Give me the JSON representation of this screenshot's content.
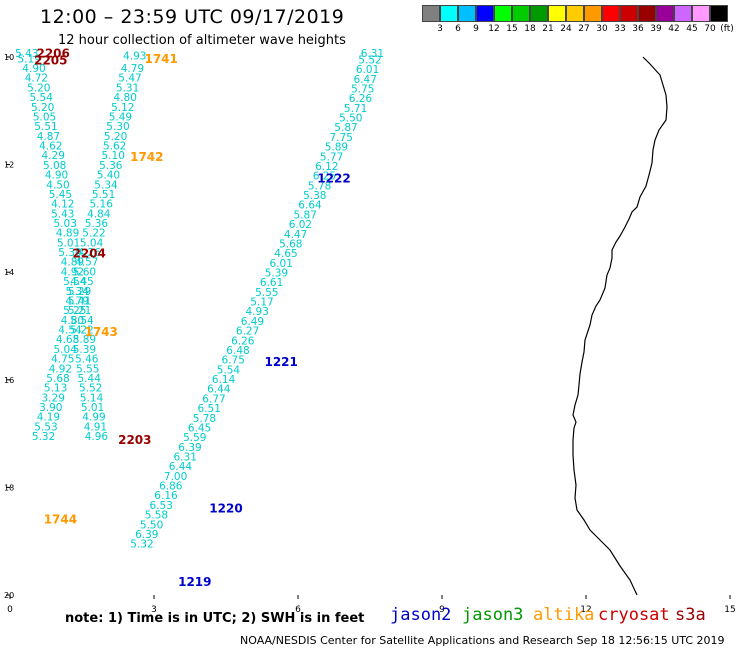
{
  "title": "12:00 – 23:59 UTC 09/17/2019",
  "subtitle": "12 hour collection of altimeter wave heights",
  "scale": {
    "unit": "(ft)",
    "values": [
      "3",
      "6",
      "9",
      "12",
      "15",
      "18",
      "21",
      "24",
      "27",
      "30",
      "33",
      "36",
      "39",
      "42",
      "45",
      "70"
    ],
    "colors": [
      "#808080",
      "#00ffff",
      "#00bfff",
      "#0000ff",
      "#00ff00",
      "#00cc00",
      "#009900",
      "#ffff00",
      "#ffcc00",
      "#ff9900",
      "#ff0000",
      "#cc0000",
      "#990000",
      "#990099",
      "#cc66ff",
      "#ff99ff",
      "#000000"
    ]
  },
  "axes": {
    "x_ticks": [
      "0",
      "3",
      "6",
      "9",
      "12",
      "15"
    ],
    "y_ticks": [
      "10",
      "12",
      "14",
      "16",
      "18",
      "20"
    ],
    "x_range": [
      0,
      15
    ],
    "y_range": [
      10,
      20
    ]
  },
  "colors": {
    "wave": "#00cccc",
    "jason2": "#0000cc",
    "jason3": "#009900",
    "altika": "#ff9900",
    "cryosat": "#cc0000",
    "s3a": "#990000",
    "coast": "#000000"
  },
  "tracks": [
    {
      "time": "1741",
      "sat": "altika",
      "x": 3.15,
      "y": 10.11
    },
    {
      "time": "1742",
      "sat": "altika",
      "x": 2.85,
      "y": 11.93
    },
    {
      "time": "1743",
      "sat": "altika",
      "x": 1.9,
      "y": 15.19
    },
    {
      "time": "1744",
      "sat": "altika",
      "x": 1.05,
      "y": 18.67
    },
    {
      "time": "2206",
      "sat": "s3a",
      "x": 0.9,
      "y": 10.01
    },
    {
      "time": "2205",
      "sat": "s3a",
      "x": 0.85,
      "y": 10.14
    },
    {
      "time": "2204",
      "sat": "s3a",
      "x": 1.65,
      "y": 13.73
    },
    {
      "time": "2203",
      "sat": "s3a",
      "x": 2.6,
      "y": 17.19
    },
    {
      "time": "1222",
      "sat": "jason2",
      "x": 6.75,
      "y": 12.33
    },
    {
      "time": "1221",
      "sat": "jason2",
      "x": 5.65,
      "y": 15.74
    },
    {
      "time": "1220",
      "sat": "jason2",
      "x": 4.5,
      "y": 18.47
    },
    {
      "time": "1219",
      "sat": "jason2",
      "x": 3.85,
      "y": 19.83
    }
  ],
  "points": [
    {
      "v": "5.43",
      "x": 0.35,
      "y": 10.0
    },
    {
      "v": "5.19",
      "x": 0.4,
      "y": 10.1
    },
    {
      "v": "4.90",
      "x": 0.5,
      "y": 10.28
    },
    {
      "v": "4.72",
      "x": 0.55,
      "y": 10.46
    },
    {
      "v": "5.20",
      "x": 0.6,
      "y": 10.64
    },
    {
      "v": "5.54",
      "x": 0.65,
      "y": 10.82
    },
    {
      "v": "5.20",
      "x": 0.68,
      "y": 11.0
    },
    {
      "v": "5.05",
      "x": 0.72,
      "y": 11.18
    },
    {
      "v": "5.51",
      "x": 0.75,
      "y": 11.36
    },
    {
      "v": "4.87",
      "x": 0.8,
      "y": 11.54
    },
    {
      "v": "4.62",
      "x": 0.85,
      "y": 11.72
    },
    {
      "v": "4.29",
      "x": 0.9,
      "y": 11.9
    },
    {
      "v": "5.08",
      "x": 0.93,
      "y": 12.08
    },
    {
      "v": "4.90",
      "x": 0.97,
      "y": 12.26
    },
    {
      "v": "4.50",
      "x": 1.0,
      "y": 12.44
    },
    {
      "v": "5.45",
      "x": 1.05,
      "y": 12.62
    },
    {
      "v": "4.12",
      "x": 1.1,
      "y": 12.8
    },
    {
      "v": "5.43",
      "x": 1.1,
      "y": 12.98
    },
    {
      "v": "5.03",
      "x": 1.15,
      "y": 13.16
    },
    {
      "v": "4.89",
      "x": 1.2,
      "y": 13.34
    },
    {
      "v": "5.01",
      "x": 1.22,
      "y": 13.52
    },
    {
      "v": "5.30",
      "x": 1.25,
      "y": 13.7
    },
    {
      "v": "4.89",
      "x": 1.3,
      "y": 13.88
    },
    {
      "v": "4.92",
      "x": 1.3,
      "y": 14.06
    },
    {
      "v": "5.54",
      "x": 1.35,
      "y": 14.24
    },
    {
      "v": "5.34",
      "x": 1.4,
      "y": 14.42
    },
    {
      "v": "5.41",
      "x": 1.45,
      "y": 14.6
    },
    {
      "v": "5.21",
      "x": 1.45,
      "y": 14.78
    },
    {
      "v": "5.54",
      "x": 1.5,
      "y": 14.96
    },
    {
      "v": "5.22",
      "x": 1.5,
      "y": 15.14
    },
    {
      "v": "5.89",
      "x": 1.55,
      "y": 15.32
    },
    {
      "v": "5.39",
      "x": 1.55,
      "y": 15.5
    },
    {
      "v": "5.46",
      "x": 1.6,
      "y": 15.68
    },
    {
      "v": "5.55",
      "x": 1.62,
      "y": 15.86
    },
    {
      "v": "5.44",
      "x": 1.65,
      "y": 16.04
    },
    {
      "v": "5.52",
      "x": 1.68,
      "y": 16.22
    },
    {
      "v": "5.14",
      "x": 1.7,
      "y": 16.4
    },
    {
      "v": "5.01",
      "x": 1.72,
      "y": 16.58
    },
    {
      "v": "4.99",
      "x": 1.75,
      "y": 16.76
    },
    {
      "v": "4.91",
      "x": 1.78,
      "y": 16.94
    },
    {
      "v": "4.96",
      "x": 1.8,
      "y": 17.12
    },
    {
      "v": "4.93",
      "x": 2.6,
      "y": 10.05
    },
    {
      "v": "4.79",
      "x": 2.55,
      "y": 10.28
    },
    {
      "v": "5.47",
      "x": 2.5,
      "y": 10.46
    },
    {
      "v": "5.31",
      "x": 2.45,
      "y": 10.64
    },
    {
      "v": "4.80",
      "x": 2.4,
      "y": 10.82
    },
    {
      "v": "5.12",
      "x": 2.35,
      "y": 11.0
    },
    {
      "v": "5.49",
      "x": 2.3,
      "y": 11.18
    },
    {
      "v": "5.30",
      "x": 2.25,
      "y": 11.36
    },
    {
      "v": "5.20",
      "x": 2.2,
      "y": 11.54
    },
    {
      "v": "5.62",
      "x": 2.18,
      "y": 11.72
    },
    {
      "v": "5.10",
      "x": 2.15,
      "y": 11.9
    },
    {
      "v": "5.36",
      "x": 2.1,
      "y": 12.08
    },
    {
      "v": "5.40",
      "x": 2.05,
      "y": 12.26
    },
    {
      "v": "5.34",
      "x": 2.0,
      "y": 12.44
    },
    {
      "v": "5.51",
      "x": 1.95,
      "y": 12.62
    },
    {
      "v": "5.16",
      "x": 1.9,
      "y": 12.8
    },
    {
      "v": "4.84",
      "x": 1.85,
      "y": 12.98
    },
    {
      "v": "5.36",
      "x": 1.8,
      "y": 13.16
    },
    {
      "v": "5.22",
      "x": 1.75,
      "y": 13.34
    },
    {
      "v": "5.04",
      "x": 1.7,
      "y": 13.52
    },
    {
      "v": "4.26",
      "x": 1.65,
      "y": 13.7
    },
    {
      "v": "4.57",
      "x": 1.6,
      "y": 13.88
    },
    {
      "v": "5.60",
      "x": 1.55,
      "y": 14.06
    },
    {
      "v": "4.45",
      "x": 1.5,
      "y": 14.24
    },
    {
      "v": "5.29",
      "x": 1.45,
      "y": 14.42
    },
    {
      "v": "4.79",
      "x": 1.4,
      "y": 14.6
    },
    {
      "v": "5.25",
      "x": 1.35,
      "y": 14.78
    },
    {
      "v": "4.80",
      "x": 1.3,
      "y": 14.96
    },
    {
      "v": "4.54",
      "x": 1.25,
      "y": 15.14
    },
    {
      "v": "4.68",
      "x": 1.2,
      "y": 15.32
    },
    {
      "v": "5.04",
      "x": 1.15,
      "y": 15.5
    },
    {
      "v": "4.75",
      "x": 1.1,
      "y": 15.68
    },
    {
      "v": "4.92",
      "x": 1.05,
      "y": 15.86
    },
    {
      "v": "5.68",
      "x": 1.0,
      "y": 16.04
    },
    {
      "v": "5.13",
      "x": 0.95,
      "y": 16.22
    },
    {
      "v": "3.29",
      "x": 0.9,
      "y": 16.4
    },
    {
      "v": "3.90",
      "x": 0.85,
      "y": 16.58
    },
    {
      "v": "4.19",
      "x": 0.8,
      "y": 16.76
    },
    {
      "v": "5.53",
      "x": 0.75,
      "y": 16.94
    },
    {
      "v": "5.32",
      "x": 0.7,
      "y": 17.12
    },
    {
      "v": "6.31",
      "x": 7.55,
      "y": 10.0
    },
    {
      "v": "5.52",
      "x": 7.5,
      "y": 10.12
    },
    {
      "v": "6.01",
      "x": 7.45,
      "y": 10.3
    },
    {
      "v": "6.47",
      "x": 7.4,
      "y": 10.48
    },
    {
      "v": "5.75",
      "x": 7.35,
      "y": 10.66
    },
    {
      "v": "6.26",
      "x": 7.3,
      "y": 10.84
    },
    {
      "v": "5.71",
      "x": 7.2,
      "y": 11.02
    },
    {
      "v": "5.50",
      "x": 7.1,
      "y": 11.2
    },
    {
      "v": "5.87",
      "x": 7.0,
      "y": 11.38
    },
    {
      "v": "7.75",
      "x": 6.9,
      "y": 11.56
    },
    {
      "v": "5.89",
      "x": 6.8,
      "y": 11.74
    },
    {
      "v": "5.77",
      "x": 6.7,
      "y": 11.92
    },
    {
      "v": "6.12",
      "x": 6.6,
      "y": 12.1
    },
    {
      "v": "6.25",
      "x": 6.55,
      "y": 12.28
    },
    {
      "v": "5.78",
      "x": 6.45,
      "y": 12.46
    },
    {
      "v": "5.38",
      "x": 6.35,
      "y": 12.64
    },
    {
      "v": "6.64",
      "x": 6.25,
      "y": 12.82
    },
    {
      "v": "5.87",
      "x": 6.15,
      "y": 13.0
    },
    {
      "v": "6.02",
      "x": 6.05,
      "y": 13.18
    },
    {
      "v": "4.47",
      "x": 5.95,
      "y": 13.36
    },
    {
      "v": "5.68",
      "x": 5.85,
      "y": 13.54
    },
    {
      "v": "4.65",
      "x": 5.75,
      "y": 13.72
    },
    {
      "v": "6.01",
      "x": 5.65,
      "y": 13.9
    },
    {
      "v": "5.39",
      "x": 5.55,
      "y": 14.08
    },
    {
      "v": "6.61",
      "x": 5.45,
      "y": 14.26
    },
    {
      "v": "5.55",
      "x": 5.35,
      "y": 14.44
    },
    {
      "v": "5.17",
      "x": 5.25,
      "y": 14.62
    },
    {
      "v": "4.93",
      "x": 5.15,
      "y": 14.8
    },
    {
      "v": "6.49",
      "x": 5.05,
      "y": 14.98
    },
    {
      "v": "6.27",
      "x": 4.95,
      "y": 15.16
    },
    {
      "v": "6.26",
      "x": 4.85,
      "y": 15.34
    },
    {
      "v": "6.48",
      "x": 4.75,
      "y": 15.52
    },
    {
      "v": "6.75",
      "x": 4.65,
      "y": 15.7
    },
    {
      "v": "5.54",
      "x": 4.55,
      "y": 15.88
    },
    {
      "v": "6.14",
      "x": 4.45,
      "y": 16.06
    },
    {
      "v": "6.44",
      "x": 4.35,
      "y": 16.24
    },
    {
      "v": "6.77",
      "x": 4.25,
      "y": 16.42
    },
    {
      "v": "6.51",
      "x": 4.15,
      "y": 16.6
    },
    {
      "v": "5.78",
      "x": 4.05,
      "y": 16.78
    },
    {
      "v": "6.45",
      "x": 3.95,
      "y": 16.96
    },
    {
      "v": "5.59",
      "x": 3.85,
      "y": 17.14
    },
    {
      "v": "6.39",
      "x": 3.75,
      "y": 17.32
    },
    {
      "v": "6.31",
      "x": 3.65,
      "y": 17.5
    },
    {
      "v": "6.44",
      "x": 3.55,
      "y": 17.68
    },
    {
      "v": "7.00",
      "x": 3.45,
      "y": 17.86
    },
    {
      "v": "6.86",
      "x": 3.35,
      "y": 18.04
    },
    {
      "v": "6.16",
      "x": 3.25,
      "y": 18.22
    },
    {
      "v": "6.53",
      "x": 3.15,
      "y": 18.4
    },
    {
      "v": "5.58",
      "x": 3.05,
      "y": 18.58
    },
    {
      "v": "5.50",
      "x": 2.95,
      "y": 18.76
    },
    {
      "v": "6.39",
      "x": 2.85,
      "y": 18.94
    },
    {
      "v": "5.32",
      "x": 2.75,
      "y": 19.12
    }
  ],
  "note": "note: 1) Time is in UTC; 2) SWH is in feet",
  "legend": [
    "jason2",
    "jason3",
    "altika",
    "cryosat",
    "s3a"
  ],
  "credit": "NOAA/NESDIS Center for Satellite Applications and Research   Sep 18 12:56:15 UTC 2019"
}
